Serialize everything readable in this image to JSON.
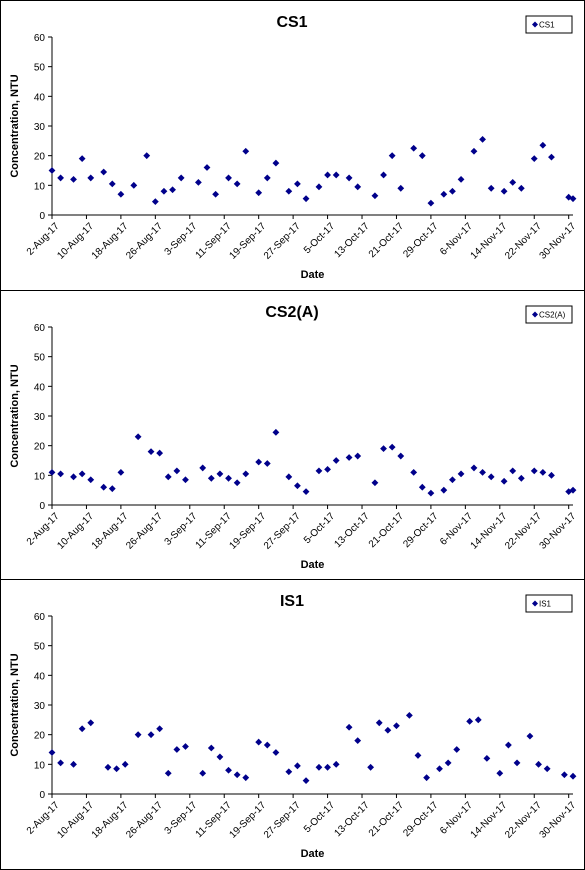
{
  "chart_data": [
    {
      "type": "scatter",
      "title": "CS1",
      "xlabel": "Date",
      "ylabel": "Concentration, NTU",
      "ylim": [
        0,
        60
      ],
      "yticks": [
        0,
        10,
        20,
        30,
        40,
        50,
        60
      ],
      "xlim": [
        "2017-08-02",
        "2017-12-01"
      ],
      "xticks": [
        "2-Aug-17",
        "10-Aug-17",
        "18-Aug-17",
        "26-Aug-17",
        "3-Sep-17",
        "11-Sep-17",
        "19-Sep-17",
        "27-Sep-17",
        "5-Oct-17",
        "13-Oct-17",
        "21-Oct-17",
        "29-Oct-17",
        "6-Nov-17",
        "14-Nov-17",
        "22-Nov-17",
        "30-Nov-17"
      ],
      "legend_position": "top-right",
      "marker_color": "#00008B",
      "series": [
        {
          "name": "CS1",
          "points": [
            [
              "2017-08-02",
              15
            ],
            [
              "2017-08-04",
              12.5
            ],
            [
              "2017-08-07",
              12
            ],
            [
              "2017-08-09",
              19
            ],
            [
              "2017-08-11",
              12.5
            ],
            [
              "2017-08-14",
              14.5
            ],
            [
              "2017-08-16",
              10.5
            ],
            [
              "2017-08-18",
              7
            ],
            [
              "2017-08-21",
              10
            ],
            [
              "2017-08-24",
              20
            ],
            [
              "2017-08-26",
              4.5
            ],
            [
              "2017-08-28",
              8
            ],
            [
              "2017-08-30",
              8.5
            ],
            [
              "2017-09-01",
              12.5
            ],
            [
              "2017-09-05",
              11
            ],
            [
              "2017-09-07",
              16
            ],
            [
              "2017-09-09",
              7
            ],
            [
              "2017-09-12",
              12.5
            ],
            [
              "2017-09-14",
              10.5
            ],
            [
              "2017-09-16",
              21.5
            ],
            [
              "2017-09-19",
              7.5
            ],
            [
              "2017-09-21",
              12.5
            ],
            [
              "2017-09-23",
              17.5
            ],
            [
              "2017-09-26",
              8
            ],
            [
              "2017-09-28",
              10.5
            ],
            [
              "2017-09-30",
              5.5
            ],
            [
              "2017-10-03",
              9.5
            ],
            [
              "2017-10-05",
              13.5
            ],
            [
              "2017-10-07",
              13.5
            ],
            [
              "2017-10-10",
              12.5
            ],
            [
              "2017-10-12",
              9.5
            ],
            [
              "2017-10-16",
              6.5
            ],
            [
              "2017-10-18",
              13.5
            ],
            [
              "2017-10-20",
              20
            ],
            [
              "2017-10-22",
              9
            ],
            [
              "2017-10-25",
              22.5
            ],
            [
              "2017-10-27",
              20
            ],
            [
              "2017-10-29",
              4
            ],
            [
              "2017-11-01",
              7
            ],
            [
              "2017-11-03",
              8
            ],
            [
              "2017-11-05",
              12
            ],
            [
              "2017-11-08",
              21.5
            ],
            [
              "2017-11-10",
              25.5
            ],
            [
              "2017-11-12",
              9
            ],
            [
              "2017-11-15",
              8
            ],
            [
              "2017-11-17",
              11
            ],
            [
              "2017-11-19",
              9
            ],
            [
              "2017-11-22",
              19
            ],
            [
              "2017-11-24",
              23.5
            ],
            [
              "2017-11-26",
              19.5
            ],
            [
              "2017-11-30",
              6
            ],
            [
              "2017-12-01",
              5.5
            ]
          ]
        }
      ]
    },
    {
      "type": "scatter",
      "title": "CS2(A)",
      "xlabel": "Date",
      "ylabel": "Concentration, NTU",
      "ylim": [
        0,
        60
      ],
      "yticks": [
        0,
        10,
        20,
        30,
        40,
        50,
        60
      ],
      "xlim": [
        "2017-08-02",
        "2017-12-01"
      ],
      "xticks": [
        "2-Aug-17",
        "10-Aug-17",
        "18-Aug-17",
        "26-Aug-17",
        "3-Sep-17",
        "11-Sep-17",
        "19-Sep-17",
        "27-Sep-17",
        "5-Oct-17",
        "13-Oct-17",
        "21-Oct-17",
        "29-Oct-17",
        "6-Nov-17",
        "14-Nov-17",
        "22-Nov-17",
        "30-Nov-17"
      ],
      "legend_position": "top-right",
      "marker_color": "#00008B",
      "series": [
        {
          "name": "CS2(A)",
          "points": [
            [
              "2017-08-02",
              11
            ],
            [
              "2017-08-04",
              10.5
            ],
            [
              "2017-08-07",
              9.5
            ],
            [
              "2017-08-09",
              10.5
            ],
            [
              "2017-08-11",
              8.5
            ],
            [
              "2017-08-14",
              6
            ],
            [
              "2017-08-16",
              5.5
            ],
            [
              "2017-08-18",
              11
            ],
            [
              "2017-08-22",
              23
            ],
            [
              "2017-08-25",
              18
            ],
            [
              "2017-08-27",
              17.5
            ],
            [
              "2017-08-29",
              9.5
            ],
            [
              "2017-08-31",
              11.5
            ],
            [
              "2017-09-02",
              8.5
            ],
            [
              "2017-09-06",
              12.5
            ],
            [
              "2017-09-08",
              9
            ],
            [
              "2017-09-10",
              10.5
            ],
            [
              "2017-09-12",
              9
            ],
            [
              "2017-09-14",
              7.5
            ],
            [
              "2017-09-16",
              10.5
            ],
            [
              "2017-09-19",
              14.5
            ],
            [
              "2017-09-21",
              14
            ],
            [
              "2017-09-23",
              24.5
            ],
            [
              "2017-09-26",
              9.5
            ],
            [
              "2017-09-28",
              6.5
            ],
            [
              "2017-09-30",
              4.5
            ],
            [
              "2017-10-03",
              11.5
            ],
            [
              "2017-10-05",
              12
            ],
            [
              "2017-10-07",
              15
            ],
            [
              "2017-10-10",
              16
            ],
            [
              "2017-10-12",
              16.5
            ],
            [
              "2017-10-16",
              7.5
            ],
            [
              "2017-10-18",
              19
            ],
            [
              "2017-10-20",
              19.5
            ],
            [
              "2017-10-22",
              16.5
            ],
            [
              "2017-10-25",
              11
            ],
            [
              "2017-10-27",
              6
            ],
            [
              "2017-10-29",
              4
            ],
            [
              "2017-11-01",
              5
            ],
            [
              "2017-11-03",
              8.5
            ],
            [
              "2017-11-05",
              10.5
            ],
            [
              "2017-11-08",
              12.5
            ],
            [
              "2017-11-10",
              11
            ],
            [
              "2017-11-12",
              9.5
            ],
            [
              "2017-11-15",
              8
            ],
            [
              "2017-11-17",
              11.5
            ],
            [
              "2017-11-19",
              9
            ],
            [
              "2017-11-22",
              11.5
            ],
            [
              "2017-11-24",
              11
            ],
            [
              "2017-11-26",
              10
            ],
            [
              "2017-11-30",
              4.5
            ],
            [
              "2017-12-01",
              5
            ]
          ]
        }
      ]
    },
    {
      "type": "scatter",
      "title": "IS1",
      "xlabel": "Date",
      "ylabel": "Concentration, NTU",
      "ylim": [
        0,
        60
      ],
      "yticks": [
        0,
        10,
        20,
        30,
        40,
        50,
        60
      ],
      "xlim": [
        "2017-08-02",
        "2017-12-01"
      ],
      "xticks": [
        "2-Aug-17",
        "10-Aug-17",
        "18-Aug-17",
        "26-Aug-17",
        "3-Sep-17",
        "11-Sep-17",
        "19-Sep-17",
        "27-Sep-17",
        "5-Oct-17",
        "13-Oct-17",
        "21-Oct-17",
        "29-Oct-17",
        "6-Nov-17",
        "14-Nov-17",
        "22-Nov-17",
        "30-Nov-17"
      ],
      "legend_position": "top-right",
      "marker_color": "#00008B",
      "series": [
        {
          "name": "IS1",
          "points": [
            [
              "2017-08-02",
              14
            ],
            [
              "2017-08-04",
              10.5
            ],
            [
              "2017-08-07",
              10
            ],
            [
              "2017-08-09",
              22
            ],
            [
              "2017-08-11",
              24
            ],
            [
              "2017-08-15",
              9
            ],
            [
              "2017-08-17",
              8.5
            ],
            [
              "2017-08-19",
              10
            ],
            [
              "2017-08-22",
              20
            ],
            [
              "2017-08-25",
              20
            ],
            [
              "2017-08-27",
              22
            ],
            [
              "2017-08-29",
              7
            ],
            [
              "2017-08-31",
              15
            ],
            [
              "2017-09-02",
              16
            ],
            [
              "2017-09-06",
              7
            ],
            [
              "2017-09-08",
              15.5
            ],
            [
              "2017-09-10",
              12.5
            ],
            [
              "2017-09-12",
              8
            ],
            [
              "2017-09-14",
              6.5
            ],
            [
              "2017-09-16",
              5.5
            ],
            [
              "2017-09-19",
              17.5
            ],
            [
              "2017-09-21",
              16.5
            ],
            [
              "2017-09-23",
              14
            ],
            [
              "2017-09-26",
              7.5
            ],
            [
              "2017-09-28",
              9.5
            ],
            [
              "2017-09-30",
              4.5
            ],
            [
              "2017-10-03",
              9
            ],
            [
              "2017-10-05",
              9
            ],
            [
              "2017-10-07",
              10
            ],
            [
              "2017-10-10",
              22.5
            ],
            [
              "2017-10-12",
              18
            ],
            [
              "2017-10-15",
              9
            ],
            [
              "2017-10-17",
              24
            ],
            [
              "2017-10-19",
              21.5
            ],
            [
              "2017-10-21",
              23
            ],
            [
              "2017-10-24",
              26.5
            ],
            [
              "2017-10-26",
              13
            ],
            [
              "2017-10-28",
              5.5
            ],
            [
              "2017-10-31",
              8.5
            ],
            [
              "2017-11-02",
              10.5
            ],
            [
              "2017-11-04",
              15
            ],
            [
              "2017-11-07",
              24.5
            ],
            [
              "2017-11-09",
              25
            ],
            [
              "2017-11-11",
              12
            ],
            [
              "2017-11-14",
              7
            ],
            [
              "2017-11-16",
              16.5
            ],
            [
              "2017-11-18",
              10.5
            ],
            [
              "2017-11-21",
              19.5
            ],
            [
              "2017-11-23",
              10
            ],
            [
              "2017-11-25",
              8.5
            ],
            [
              "2017-11-29",
              6.5
            ],
            [
              "2017-12-01",
              6
            ]
          ]
        }
      ]
    }
  ]
}
